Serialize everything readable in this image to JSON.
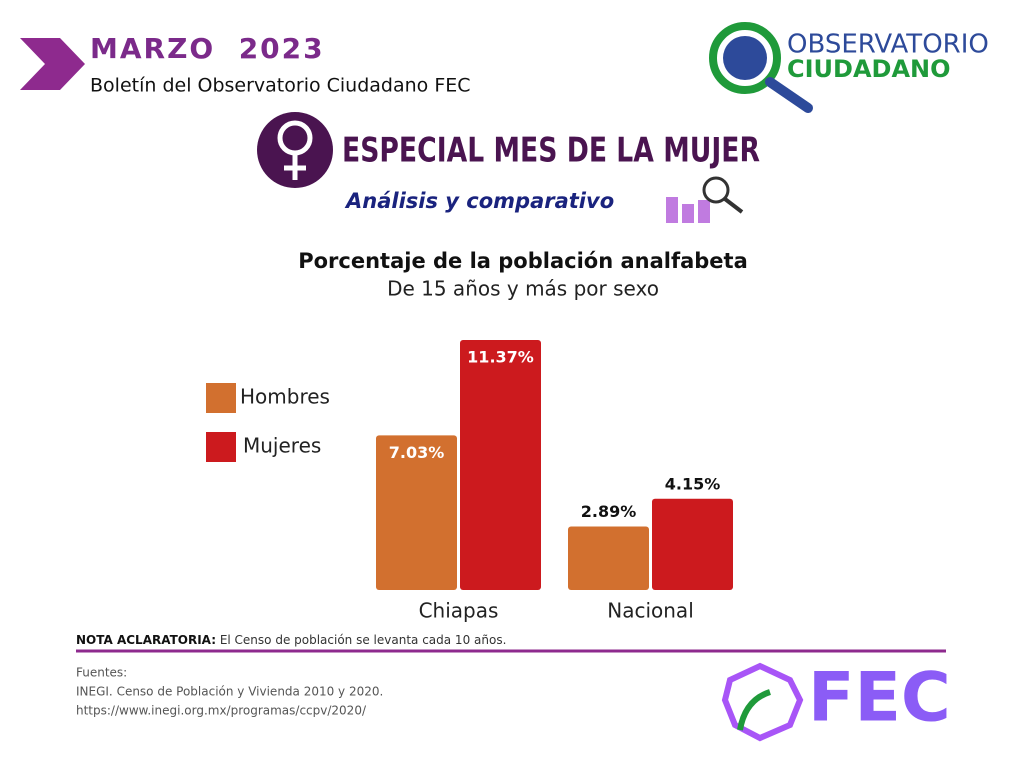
{
  "header": {
    "month": "MARZO  2023",
    "bulletin": "Boletín del Observatorio Ciudadano FEC",
    "logo_line1": "OBSERVATORIO",
    "logo_line2": "CIUDADANO",
    "special": "ESPECIAL MES DE LA MUJER",
    "analysis": "Análisis y comparativo"
  },
  "chart_data": {
    "type": "bar",
    "title": "Porcentaje de la población analfabeta",
    "subtitle": "De 15 años y más por sexo",
    "categories": [
      "Chiapas",
      "Nacional"
    ],
    "series": [
      {
        "name": "Hombres",
        "color": "#d2702f",
        "values": [
          7.03,
          2.89
        ],
        "value_labels": [
          "7.03%",
          "2.89%"
        ]
      },
      {
        "name": "Mujeres",
        "color": "#cc1a1e",
        "values": [
          11.37,
          4.15
        ],
        "value_labels": [
          "11.37%",
          "4.15%"
        ]
      }
    ]
  },
  "footer": {
    "note_label": "NOTA ACLARATORIA:",
    "note_text": " El Censo de población se levanta cada 10 años.",
    "sources": [
      "Fuentes:",
      "INEGI. Censo de Población y Vivienda 2010 y 2020.",
      "https://www.inegi.org.mx/programas/ccpv/2020/"
    ],
    "logo": "FEC"
  }
}
